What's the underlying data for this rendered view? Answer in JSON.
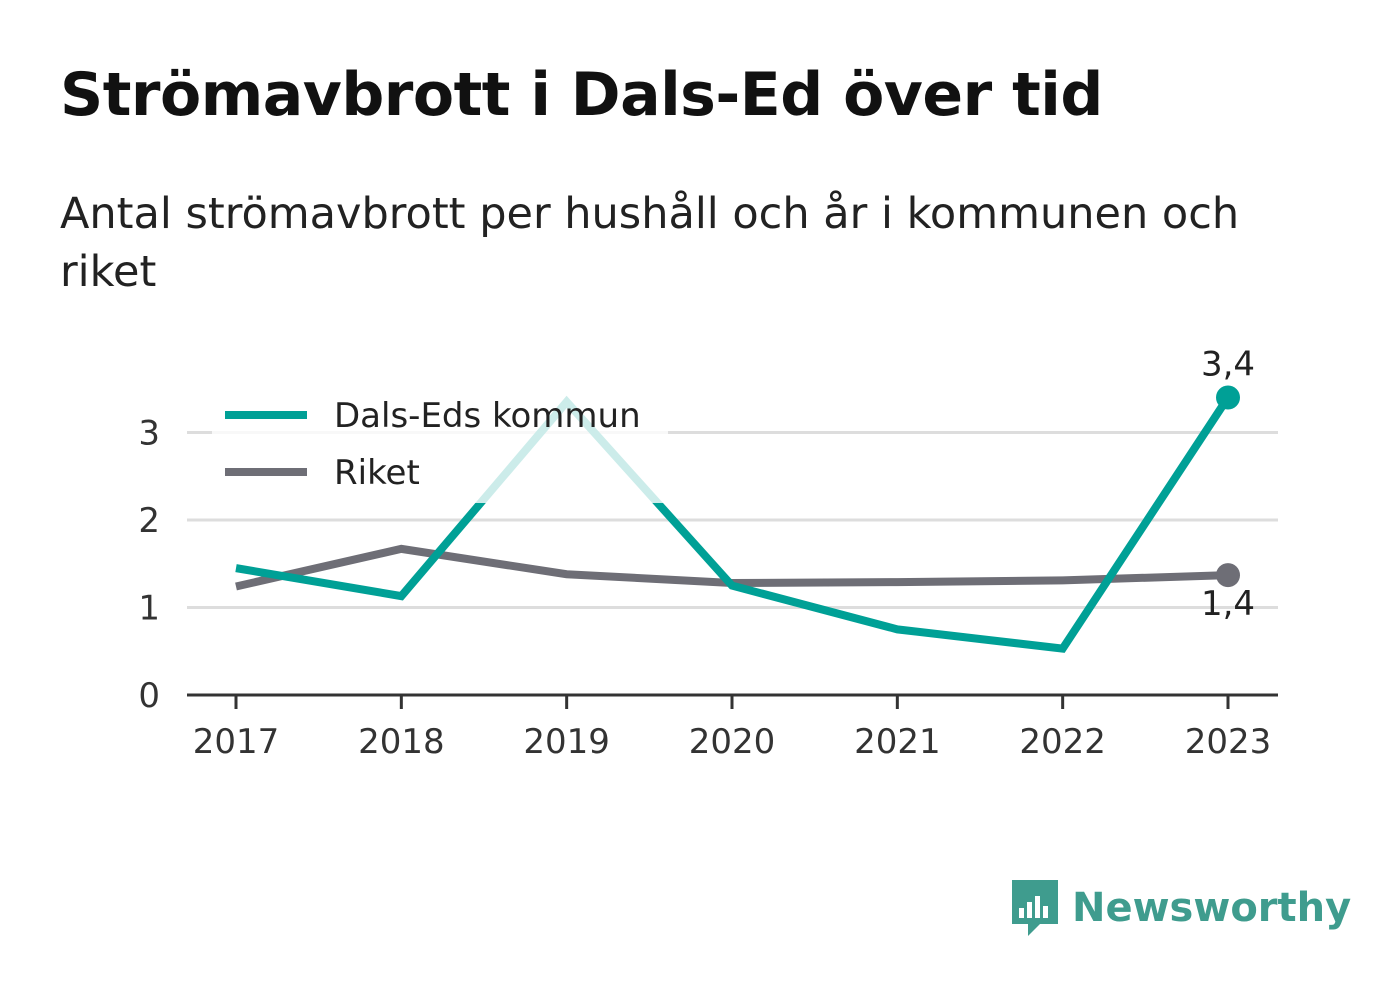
{
  "title": "Strömavbrott i Dals-Ed över tid",
  "subtitle": "Antal strömavbrott per hushåll och år i kommunen och riket",
  "colors": {
    "kommun": "#00a096",
    "riket": "#6e6e76",
    "brand": "#3f9c8e",
    "grid": "#dddddd",
    "axis": "#333333"
  },
  "brand": {
    "name": "Newsworthy",
    "icon": "bar-chart-speech-bubble-icon"
  },
  "chart_data": {
    "type": "line",
    "x": [
      "2017",
      "2018",
      "2019",
      "2020",
      "2021",
      "2022",
      "2023"
    ],
    "ylim": [
      0,
      3.6
    ],
    "yticks": [
      0,
      1,
      2,
      3
    ],
    "grid": true,
    "legend_position": "top-left",
    "series": [
      {
        "name": "Dals-Eds kommun",
        "values": [
          1.45,
          1.13,
          3.35,
          1.25,
          0.75,
          0.53,
          3.4
        ],
        "end_label": "3,4"
      },
      {
        "name": "Riket",
        "values": [
          1.24,
          1.67,
          1.38,
          1.28,
          1.29,
          1.31,
          1.37
        ],
        "end_label": "1,4"
      }
    ]
  }
}
